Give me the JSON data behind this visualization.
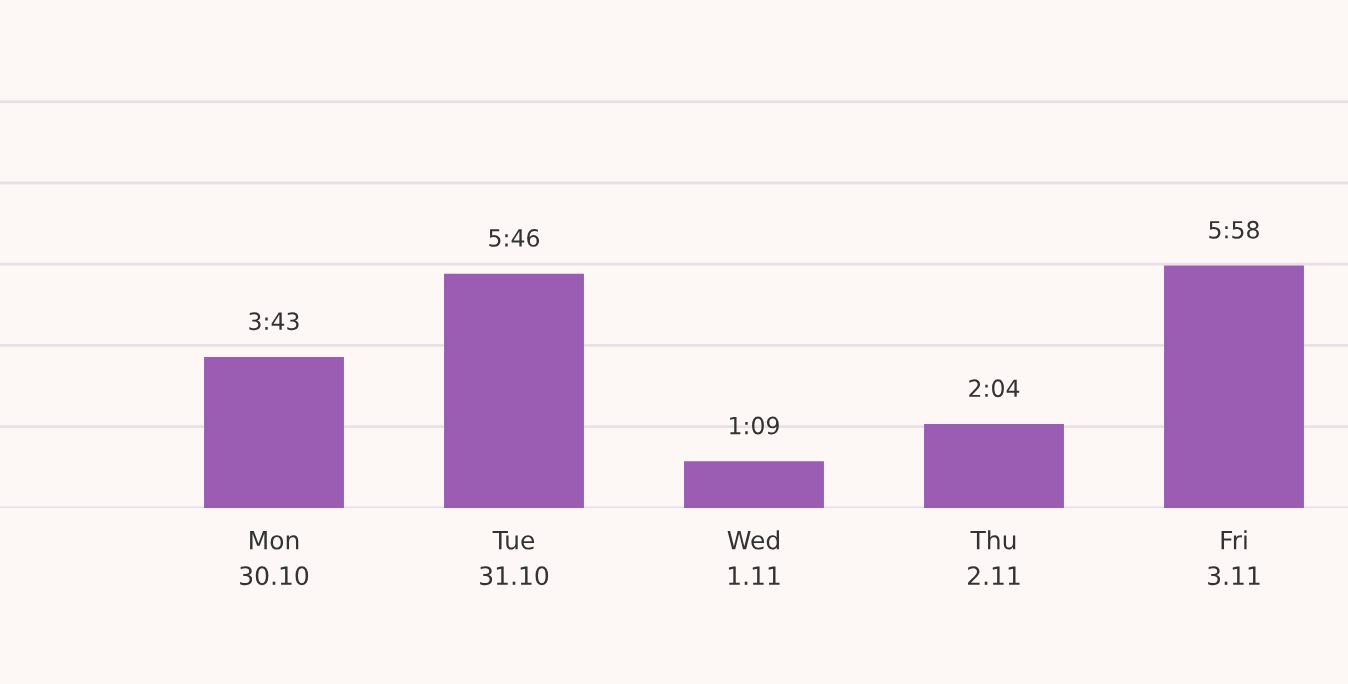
{
  "chart_data": {
    "type": "bar",
    "categories": [
      "Mon\n30.10",
      "Tue\n31.10",
      "Wed\n1.11",
      "Thu\n2.11",
      "Fri\n3.11"
    ],
    "values": [
      3.717,
      5.767,
      1.15,
      2.067,
      5.967
    ],
    "value_labels": [
      "3:43",
      "5:46",
      "1:09",
      "2:04",
      "5:58"
    ],
    "color": "#9b5db4",
    "ylim": [
      0,
      12.5
    ],
    "yticks": [
      {
        "value": 0,
        "label": null
      },
      {
        "value": 2,
        "label": null
      },
      {
        "value": 4,
        "label": null
      },
      {
        "value": 6,
        "label": null
      },
      {
        "value": 8,
        "label": null
      },
      {
        "value": 10,
        "label": null
      }
    ],
    "tick_labels": "x",
    "grid": "y"
  }
}
